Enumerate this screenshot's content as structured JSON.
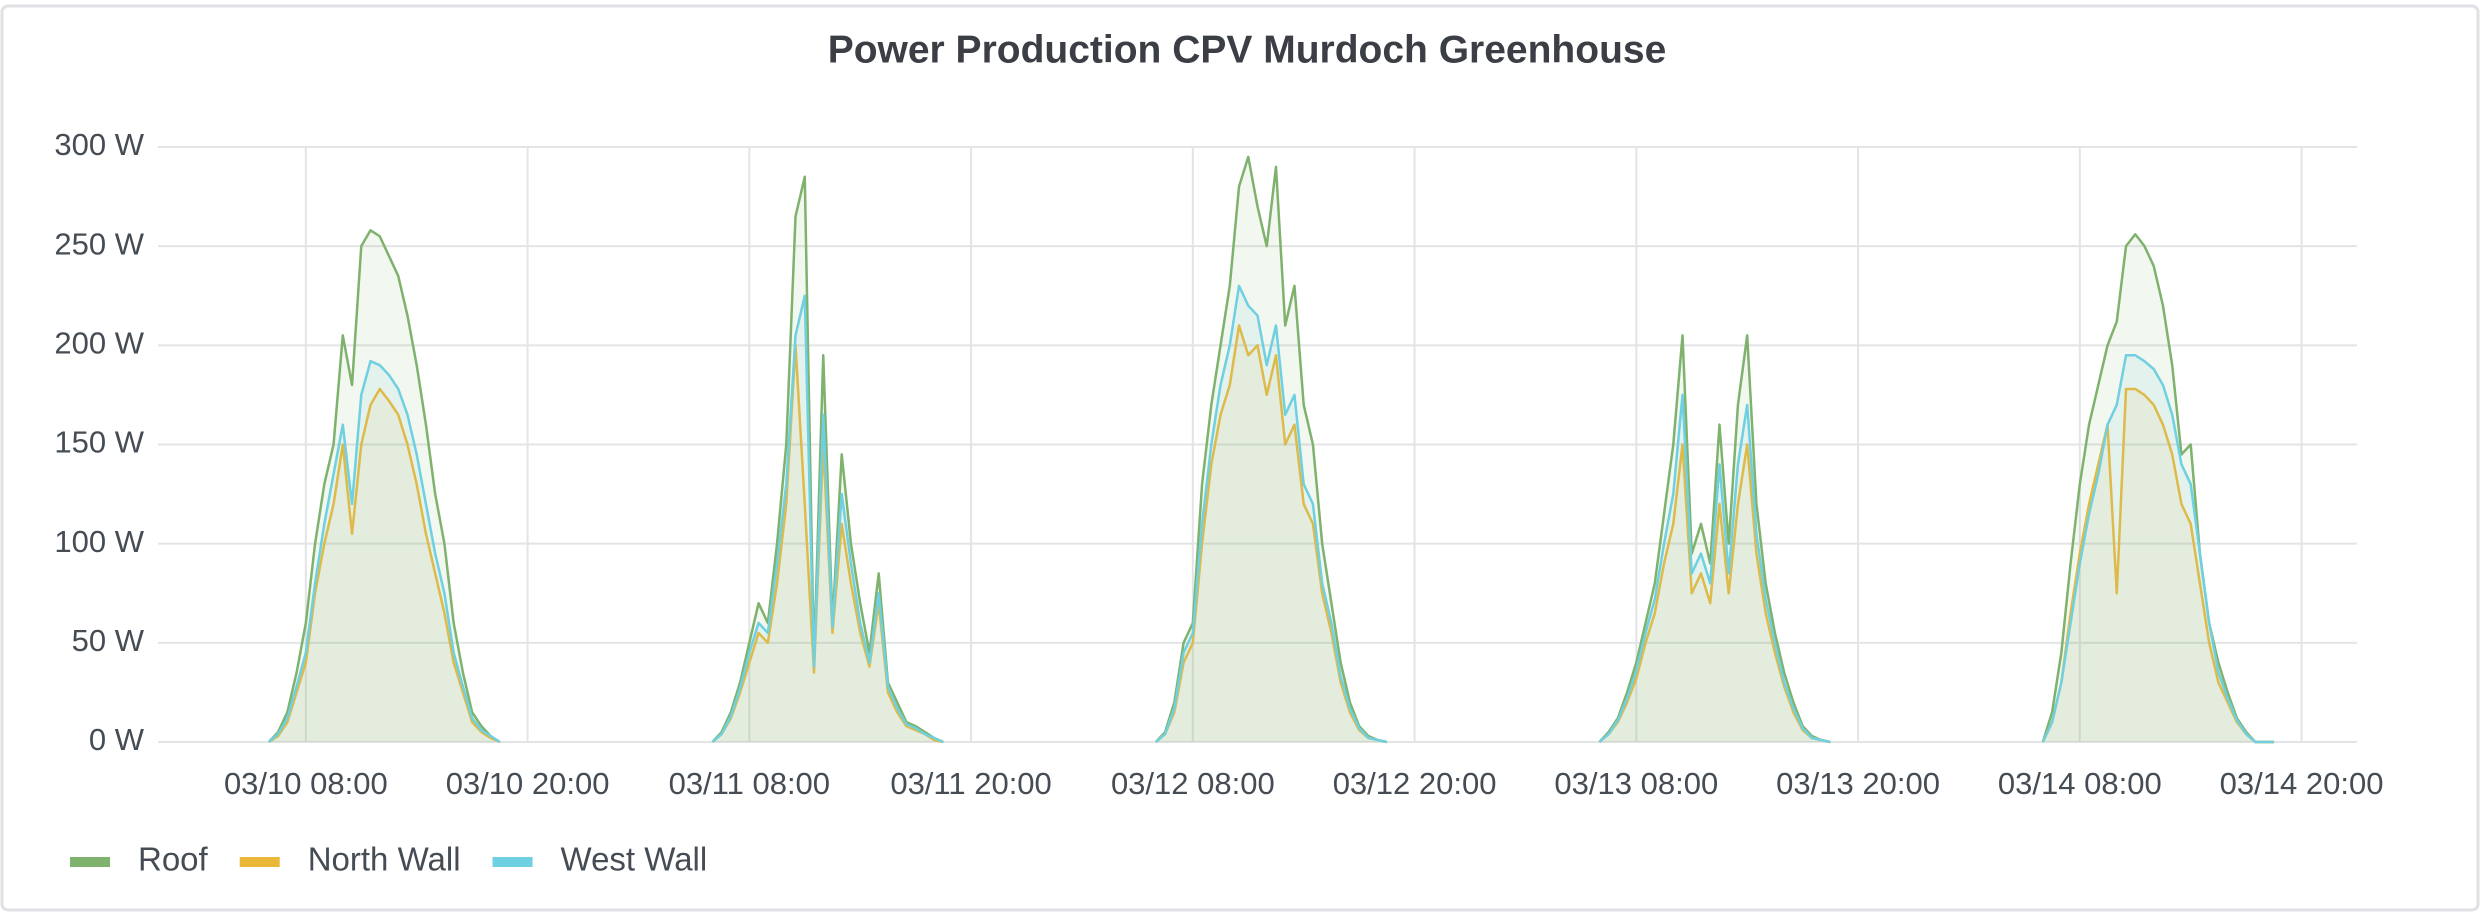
{
  "chart_data": {
    "type": "line",
    "title": "Power Production CPV Murdoch Greenhouse",
    "x": [
      "03/10 06:00",
      "03/10 06:30",
      "03/10 07:00",
      "03/10 07:30",
      "03/10 08:00",
      "03/10 08:30",
      "03/10 09:00",
      "03/10 09:30",
      "03/10 10:00",
      "03/10 10:30",
      "03/10 11:00",
      "03/10 11:30",
      "03/10 12:00",
      "03/10 12:30",
      "03/10 13:00",
      "03/10 13:30",
      "03/10 14:00",
      "03/10 14:30",
      "03/10 15:00",
      "03/10 15:30",
      "03/10 16:00",
      "03/10 16:30",
      "03/10 17:00",
      "03/10 17:30",
      "03/10 18:00",
      "03/10 18:30",
      "03/11 00:00",
      "03/11 06:00",
      "03/11 06:30",
      "03/11 07:00",
      "03/11 07:30",
      "03/11 08:00",
      "03/11 08:30",
      "03/11 09:00",
      "03/11 09:30",
      "03/11 10:00",
      "03/11 10:30",
      "03/11 11:00",
      "03/11 11:30",
      "03/11 12:00",
      "03/11 12:30",
      "03/11 13:00",
      "03/11 13:30",
      "03/11 14:00",
      "03/11 14:30",
      "03/11 15:00",
      "03/11 15:30",
      "03/11 16:00",
      "03/11 16:30",
      "03/11 17:00",
      "03/11 17:30",
      "03/11 18:00",
      "03/11 18:30",
      "03/12 00:00",
      "03/12 06:00",
      "03/12 06:30",
      "03/12 07:00",
      "03/12 07:30",
      "03/12 08:00",
      "03/12 08:30",
      "03/12 09:00",
      "03/12 09:30",
      "03/12 10:00",
      "03/12 10:30",
      "03/12 11:00",
      "03/12 11:30",
      "03/12 12:00",
      "03/12 12:30",
      "03/12 13:00",
      "03/12 13:30",
      "03/12 14:00",
      "03/12 14:30",
      "03/12 15:00",
      "03/12 15:30",
      "03/12 16:00",
      "03/12 16:30",
      "03/12 17:00",
      "03/12 17:30",
      "03/12 18:00",
      "03/12 18:30",
      "03/13 00:00",
      "03/13 06:00",
      "03/13 06:30",
      "03/13 07:00",
      "03/13 07:30",
      "03/13 08:00",
      "03/13 08:30",
      "03/13 09:00",
      "03/13 09:30",
      "03/13 10:00",
      "03/13 10:30",
      "03/13 11:00",
      "03/13 11:30",
      "03/13 12:00",
      "03/13 12:30",
      "03/13 13:00",
      "03/13 13:30",
      "03/13 14:00",
      "03/13 14:30",
      "03/13 15:00",
      "03/13 15:30",
      "03/13 16:00",
      "03/13 16:30",
      "03/13 17:00",
      "03/13 17:30",
      "03/13 18:00",
      "03/13 18:30",
      "03/14 00:00",
      "03/14 06:00",
      "03/14 06:30",
      "03/14 07:00",
      "03/14 07:30",
      "03/14 08:00",
      "03/14 08:30",
      "03/14 09:00",
      "03/14 09:30",
      "03/14 10:00",
      "03/14 10:30",
      "03/14 11:00",
      "03/14 11:30",
      "03/14 12:00",
      "03/14 12:30",
      "03/14 13:00",
      "03/14 13:30",
      "03/14 14:00",
      "03/14 14:30",
      "03/14 15:00",
      "03/14 15:30",
      "03/14 16:00",
      "03/14 16:30",
      "03/14 17:00",
      "03/14 17:30",
      "03/14 18:00",
      "03/14 18:30"
    ],
    "series": [
      {
        "name": "Roof",
        "color": "#7eb26d",
        "values": [
          0,
          5,
          15,
          35,
          60,
          100,
          130,
          150,
          205,
          180,
          250,
          258,
          255,
          245,
          235,
          215,
          190,
          160,
          125,
          100,
          60,
          35,
          15,
          8,
          3,
          0,
          null,
          0,
          5,
          15,
          30,
          50,
          70,
          60,
          100,
          150,
          265,
          285,
          40,
          195,
          60,
          145,
          100,
          70,
          45,
          85,
          30,
          20,
          10,
          8,
          5,
          2,
          0,
          null,
          0,
          5,
          20,
          50,
          60,
          130,
          170,
          200,
          230,
          280,
          295,
          270,
          250,
          290,
          210,
          230,
          170,
          150,
          100,
          70,
          40,
          20,
          8,
          3,
          1,
          0,
          null,
          0,
          5,
          12,
          25,
          40,
          60,
          80,
          115,
          150,
          205,
          95,
          110,
          90,
          160,
          100,
          170,
          205,
          120,
          80,
          55,
          35,
          20,
          8,
          3,
          1,
          0,
          null,
          0,
          15,
          45,
          90,
          130,
          160,
          180,
          200,
          212,
          250,
          256,
          250,
          240,
          220,
          190,
          145,
          150,
          95,
          60,
          40,
          25,
          12,
          5,
          0,
          0,
          0
        ]
      },
      {
        "name": "North Wall",
        "color": "#eab839",
        "values": [
          0,
          3,
          10,
          25,
          40,
          75,
          100,
          120,
          150,
          105,
          150,
          170,
          178,
          172,
          165,
          150,
          130,
          105,
          85,
          65,
          40,
          25,
          10,
          5,
          2,
          0,
          null,
          0,
          4,
          12,
          25,
          40,
          55,
          50,
          80,
          120,
          200,
          120,
          35,
          150,
          55,
          110,
          80,
          55,
          38,
          70,
          25,
          15,
          8,
          6,
          4,
          1,
          0,
          null,
          0,
          4,
          15,
          40,
          50,
          100,
          140,
          165,
          180,
          210,
          195,
          200,
          175,
          195,
          150,
          160,
          120,
          110,
          75,
          55,
          30,
          15,
          6,
          2,
          1,
          0,
          null,
          0,
          4,
          10,
          20,
          32,
          50,
          65,
          90,
          110,
          150,
          75,
          85,
          70,
          120,
          75,
          120,
          150,
          95,
          65,
          45,
          28,
          15,
          6,
          2,
          1,
          0,
          null,
          0,
          10,
          30,
          65,
          95,
          120,
          140,
          160,
          75,
          178,
          178,
          175,
          170,
          160,
          145,
          120,
          110,
          80,
          50,
          30,
          20,
          10,
          4,
          0,
          0,
          0
        ]
      },
      {
        "name": "West Wall",
        "color": "#6ed0e0",
        "values": [
          0,
          4,
          12,
          28,
          45,
          80,
          110,
          135,
          160,
          120,
          175,
          192,
          190,
          185,
          178,
          165,
          145,
          120,
          95,
          75,
          45,
          28,
          12,
          6,
          3,
          0,
          null,
          0,
          4,
          13,
          27,
          45,
          60,
          55,
          90,
          130,
          205,
          225,
          38,
          165,
          58,
          125,
          90,
          60,
          40,
          75,
          28,
          17,
          9,
          7,
          4,
          2,
          0,
          null,
          0,
          4,
          17,
          45,
          55,
          110,
          150,
          180,
          200,
          230,
          220,
          215,
          190,
          210,
          165,
          175,
          130,
          120,
          80,
          60,
          33,
          17,
          7,
          2,
          1,
          0,
          null,
          0,
          4,
          11,
          22,
          36,
          55,
          72,
          100,
          125,
          175,
          85,
          95,
          80,
          140,
          85,
          140,
          170,
          105,
          72,
          50,
          30,
          17,
          7,
          2,
          1,
          0,
          null,
          0,
          10,
          30,
          60,
          90,
          115,
          135,
          160,
          170,
          195,
          195,
          192,
          188,
          180,
          165,
          140,
          130,
          95,
          60,
          35,
          22,
          11,
          4,
          0,
          0,
          0
        ]
      }
    ],
    "xlim": [
      "03/10 00:00",
      "03/14 23:00"
    ],
    "xticks": [
      "03/10 08:00",
      "03/10 20:00",
      "03/11 08:00",
      "03/11 20:00",
      "03/12 08:00",
      "03/12 20:00",
      "03/13 08:00",
      "03/13 20:00",
      "03/14 08:00",
      "03/14 20:00"
    ],
    "ylim": [
      0,
      300
    ],
    "yticks": [
      {
        "value": 0,
        "label": "0 W"
      },
      {
        "value": 50,
        "label": "50 W"
      },
      {
        "value": 100,
        "label": "100 W"
      },
      {
        "value": 150,
        "label": "150 W"
      },
      {
        "value": 200,
        "label": "200 W"
      },
      {
        "value": 250,
        "label": "250 W"
      },
      {
        "value": 300,
        "label": "300 W"
      }
    ],
    "grid": true,
    "fill": true,
    "legend": "bottom-left"
  }
}
